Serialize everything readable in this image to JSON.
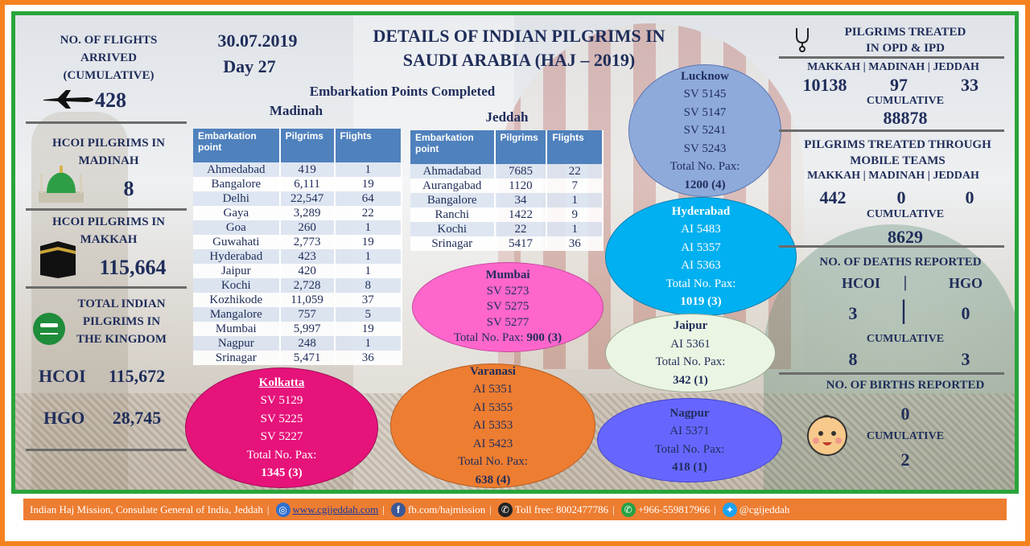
{
  "header": {
    "date": "30.07.2019",
    "day": "Day 27",
    "title_line1": "DETAILS OF INDIAN PILGRIMS IN",
    "title_line2": "SAUDI ARABIA (HAJ – 2019)",
    "embarkation_heading": "Embarkation Points Completed",
    "madinah_label": "Madinah",
    "jeddah_label": "Jeddah"
  },
  "left": {
    "flights_label_1": "NO. OF FLIGHTS",
    "flights_label_2": "ARRIVED",
    "flights_label_3": "(CUMULATIVE)",
    "flights_value": "428",
    "madinah_label_1": "HCOI PILGRIMS IN",
    "madinah_label_2": "MADINAH",
    "madinah_value": "8",
    "makkah_label_1": "HCOI PILGRIMS IN",
    "makkah_label_2": "MAKKAH",
    "makkah_value": "115,664",
    "kingdom_label_1": "TOTAL INDIAN",
    "kingdom_label_2": "PILGRIMS IN",
    "kingdom_label_3": "THE KINGDOM",
    "hcoi_label": "HCOI",
    "hcoi_value": "115,672",
    "hgo_label": "HGO",
    "hgo_value": "28,745"
  },
  "madinah_table": {
    "headers": [
      "Embarkation point",
      "Pilgrims",
      "Flights"
    ],
    "rows": [
      [
        "Ahmedabad",
        "419",
        "1"
      ],
      [
        "Bangalore",
        "6,111",
        "19"
      ],
      [
        "Delhi",
        "22,547",
        "64"
      ],
      [
        "Gaya",
        "3,289",
        "22"
      ],
      [
        "Goa",
        "260",
        "1"
      ],
      [
        "Guwahati",
        "2,773",
        "19"
      ],
      [
        "Hyderabad",
        "423",
        "1"
      ],
      [
        "Jaipur",
        "420",
        "1"
      ],
      [
        "Kochi",
        "2,728",
        "8"
      ],
      [
        "Kozhikode",
        "11,059",
        "37"
      ],
      [
        "Mangalore",
        "757",
        "5"
      ],
      [
        "Mumbai",
        "5,997",
        "19"
      ],
      [
        "Nagpur",
        "248",
        "1"
      ],
      [
        "Srinagar",
        "5,471",
        "36"
      ]
    ]
  },
  "jeddah_table": {
    "headers": [
      "Embarkation point",
      "Pilgrims",
      "Flights"
    ],
    "rows": [
      [
        "Ahmadabad",
        "7685",
        "22"
      ],
      [
        "Aurangabad",
        "1120",
        "7"
      ],
      [
        "Bangalore",
        "34",
        "1"
      ],
      [
        "Ranchi",
        "1422",
        "9"
      ],
      [
        "Kochi",
        "22",
        "1"
      ],
      [
        "Srinagar",
        "5417",
        "36"
      ]
    ]
  },
  "flights": {
    "lucknow": {
      "title": "Lucknow",
      "flights": [
        "SV 5145",
        "SV 5147",
        "SV 5241",
        "SV 5243"
      ],
      "total_label": "Total No. Pax:",
      "total": "1200 (4)"
    },
    "hyderabad": {
      "title": "Hyderabad",
      "flights": [
        "AI 5483",
        "AI 5357",
        "AI 5363"
      ],
      "total_label": "Total No. Pax:",
      "total": "1019 (3)"
    },
    "mumbai": {
      "title": "Mumbai",
      "flights": [
        "SV 5273",
        "SV 5275",
        "SV 5277"
      ],
      "total_label": "Total No. Pax:",
      "total": "900 (3)"
    },
    "jaipur": {
      "title": "Jaipur",
      "flights": [
        "AI 5361"
      ],
      "total_label": "Total No. Pax:",
      "total": "342 (1)"
    },
    "varanasi": {
      "title": "Varanasi",
      "flights": [
        "AI 5351",
        "AI 5355",
        "AI 5353",
        "AI 5423"
      ],
      "total_label": "Total No. Pax:",
      "total": "638 (4)"
    },
    "nagpur": {
      "title": "Nagpur",
      "flights": [
        "AI 5371"
      ],
      "total_label": "Total No. Pax:",
      "total": "418 (1)"
    },
    "kolkatta": {
      "title": "Kolkatta",
      "flights": [
        "SV 5129",
        "SV 5225",
        "SV 5227"
      ],
      "total_label": "Total No. Pax:",
      "total": "1345 (3)"
    }
  },
  "right": {
    "opd_title_1": "PILGRIMS TREATED",
    "opd_title_2": "IN OPD & IPD",
    "cities": "MAKKAH | MADINAH | JEDDAH",
    "opd_makkah": "10138",
    "opd_madinah": "97",
    "opd_jeddah": "33",
    "cumulative_label": "CUMULATIVE",
    "opd_cumulative": "88878",
    "mobile_title_1": "PILGRIMS TREATED THROUGH",
    "mobile_title_2": "MOBILE TEAMS",
    "mobile_makkah": "442",
    "mobile_madinah": "0",
    "mobile_jeddah": "0",
    "mobile_cumulative": "8629",
    "deaths_title": "NO. OF DEATHS REPORTED",
    "deaths_hcoi_label": "HCOI",
    "deaths_divider": "|",
    "deaths_hgo_label": "HGO",
    "deaths_hcoi": "3",
    "deaths_hgo": "0",
    "deaths_cum_hcoi": "8",
    "deaths_cum_hgo": "3",
    "births_title": "NO. OF BIRTHS REPORTED",
    "births_value": "0",
    "births_cumulative": "2"
  },
  "footer": {
    "org": "Indian Haj Mission, Consulate General of India, Jeddah",
    "website": "www.cgijeddah.com",
    "facebook": "fb.com/hajmission",
    "tollfree": "Toll free: 8002477786",
    "whatsapp": "+966-559817966",
    "twitter": "@cgijeddah"
  },
  "colors": {
    "orange": "#f5821f",
    "green": "#2aa43a",
    "navy": "#1f2d5a",
    "table_header": "#4f81bd"
  }
}
